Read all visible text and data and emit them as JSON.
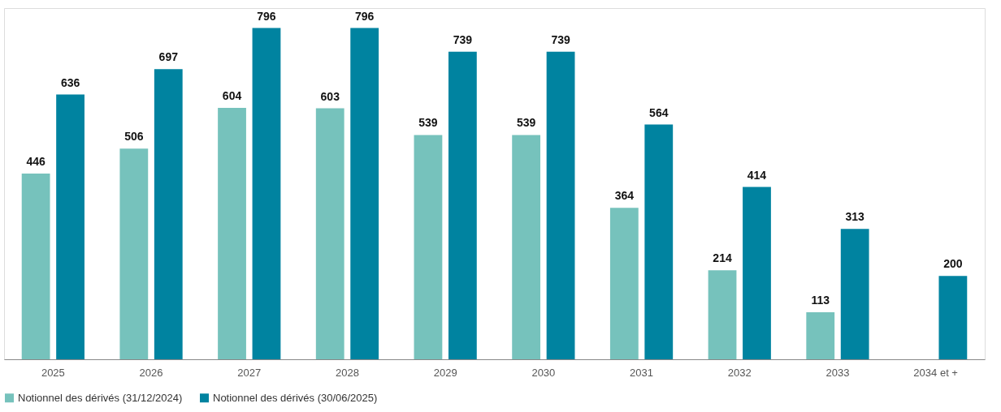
{
  "chart_data": {
    "type": "bar",
    "categories": [
      "2025",
      "2026",
      "2027",
      "2028",
      "2029",
      "2030",
      "2031",
      "2032",
      "2033",
      "2034 et +"
    ],
    "series": [
      {
        "name": "Notionnel des dérivés (31/12/2024)",
        "color": "#76c2bc",
        "values": [
          446,
          506,
          604,
          603,
          539,
          539,
          364,
          214,
          113,
          null
        ]
      },
      {
        "name": "Notionnel des dérivés (30/06/2025)",
        "color": "#0083a0",
        "values": [
          636,
          697,
          796,
          796,
          739,
          739,
          564,
          414,
          313,
          200
        ]
      }
    ],
    "data_labels": true,
    "legend": "bottom",
    "grid": false,
    "tick_labels": "x"
  }
}
